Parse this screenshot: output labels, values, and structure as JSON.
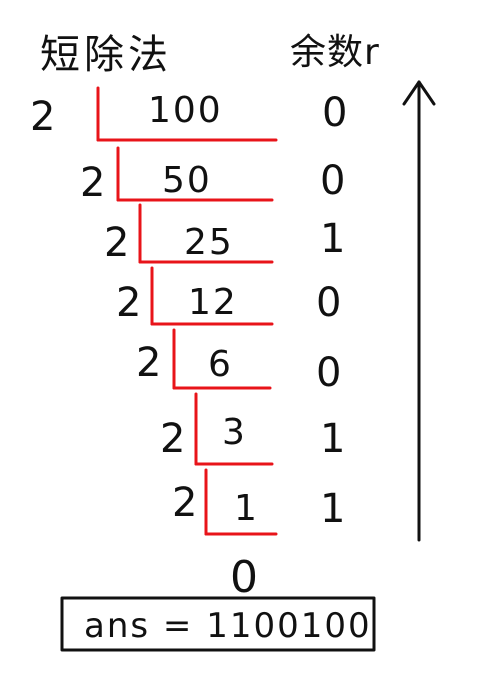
{
  "title": "短除法",
  "remainder_header": "余数r",
  "steps": [
    {
      "divisor": "2",
      "dividend": "100",
      "remainder": "0"
    },
    {
      "divisor": "2",
      "dividend": "50",
      "remainder": "0"
    },
    {
      "divisor": "2",
      "dividend": "25",
      "remainder": "1"
    },
    {
      "divisor": "2",
      "dividend": "12",
      "remainder": "0"
    },
    {
      "divisor": "2",
      "dividend": "6",
      "remainder": "0"
    },
    {
      "divisor": "2",
      "dividend": "3",
      "remainder": "1"
    },
    {
      "divisor": "2",
      "dividend": "1",
      "remainder": "1"
    }
  ],
  "final_quotient": "0",
  "answer": "ans = 1100100",
  "colors": {
    "ink": "#111111",
    "division_lines": "#e8141a"
  },
  "icons": {
    "arrow": "up-arrow-icon"
  }
}
